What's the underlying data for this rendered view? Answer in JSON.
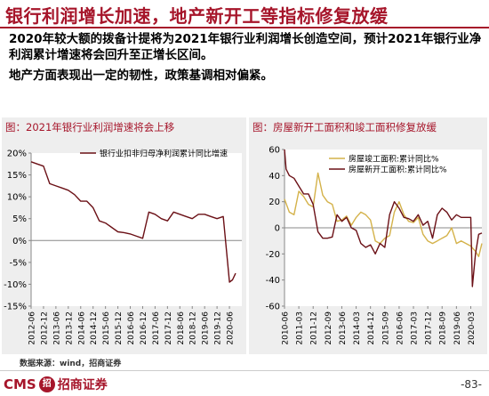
{
  "page": {
    "title": "银行利润增长加速，地产新开工等指标修复放缓",
    "bullets": [
      "2020年较大额的拨备计提将为2021年银行业利润增长创造空间，预计2021年银行业净利润累计增速将会回升至正增长区间。",
      "地产方面表现出一定的韧性，政策基调相对偏紧。"
    ],
    "source": "数据来源：wind，招商证券",
    "logo_latin": "CMS",
    "logo_badge": "招",
    "logo_cn": "招商证券",
    "page_number": "-83-"
  },
  "colors": {
    "brand": "#a6152a",
    "series_bank": "#6b1016",
    "series_completion": "#d4b24a",
    "series_new_start": "#6b1016"
  },
  "chart_data": [
    {
      "type": "line",
      "title": "图：2021年银行业利润增速将会上移",
      "xlabel": "",
      "ylabel": "",
      "ylim": [
        -15,
        20
      ],
      "yticks": [
        20,
        15,
        10,
        5,
        0,
        -5,
        -10,
        -15
      ],
      "ytick_labels": [
        "20%",
        "15%",
        "10%",
        "5%",
        "0%",
        "-5%",
        "-10%",
        "-15%"
      ],
      "xlim": [
        2012.417,
        2020.917
      ],
      "xticks": [
        2012.417,
        2012.917,
        2013.417,
        2013.917,
        2014.417,
        2014.917,
        2015.417,
        2015.917,
        2016.417,
        2016.917,
        2017.417,
        2017.917,
        2018.417,
        2018.917,
        2019.417,
        2019.917,
        2020.417
      ],
      "xtick_labels": [
        "2012-06",
        "2012-12",
        "2013-06",
        "2013-12",
        "2014-06",
        "2014-12",
        "2015-06",
        "2015-12",
        "2016-06",
        "2016-12",
        "2017-06",
        "2017-12",
        "2018-06",
        "2018-12",
        "2019-06",
        "2019-12",
        "2020-06"
      ],
      "legend_position": "top",
      "series": [
        {
          "name": "银行业扣非归母净利润累计同比增速",
          "x": [
            2012.417,
            2012.667,
            2012.917,
            2013.167,
            2013.417,
            2013.667,
            2013.917,
            2014.167,
            2014.417,
            2014.667,
            2014.917,
            2015.167,
            2015.417,
            2015.667,
            2015.917,
            2016.167,
            2016.417,
            2016.667,
            2016.917,
            2017.167,
            2017.417,
            2017.667,
            2017.917,
            2018.167,
            2018.417,
            2018.667,
            2018.917,
            2019.167,
            2019.417,
            2019.667,
            2019.917,
            2020.167,
            2020.417,
            2020.542,
            2020.667
          ],
          "values": [
            18,
            17.5,
            17,
            13,
            12.5,
            12,
            11.5,
            10.5,
            9,
            9,
            7.5,
            4.5,
            4,
            3,
            2,
            1.8,
            1.5,
            1,
            0.5,
            6.5,
            6,
            5,
            4.5,
            6.5,
            6,
            5.5,
            5,
            6,
            6,
            5.5,
            5,
            5.5,
            -9.5,
            -9,
            -7.5
          ]
        }
      ]
    },
    {
      "type": "line",
      "title": "图：房屋新开工面积和竣工面积修复放缓",
      "xlabel": "",
      "ylabel": "",
      "ylim": [
        -60,
        60
      ],
      "yticks": [
        60,
        40,
        20,
        0,
        -20,
        -40,
        -60
      ],
      "ytick_labels": [
        "60",
        "40",
        "20",
        "0",
        "-20",
        "-40",
        "-60"
      ],
      "xlim": [
        2010.417,
        2020.75
      ],
      "xticks": [
        2010.417,
        2011.167,
        2011.917,
        2012.667,
        2013.417,
        2014.167,
        2014.917,
        2015.667,
        2016.417,
        2017.167,
        2017.917,
        2018.667,
        2019.417,
        2020.167
      ],
      "xtick_labels": [
        "2010-06",
        "2011-03",
        "2011-12",
        "2012-09",
        "2013-06",
        "2014-03",
        "2014-12",
        "2015-09",
        "2016-06",
        "2017-03",
        "2017-12",
        "2018-09",
        "2019-06",
        "2020-03"
      ],
      "legend_position": "top-right",
      "series": [
        {
          "name": "房屋竣工面积:累计同比%",
          "x": [
            2010.417,
            2010.667,
            2010.917,
            2011.167,
            2011.417,
            2011.667,
            2011.917,
            2012.167,
            2012.417,
            2012.667,
            2012.917,
            2013.167,
            2013.417,
            2013.667,
            2013.917,
            2014.167,
            2014.417,
            2014.667,
            2014.917,
            2015.167,
            2015.417,
            2015.667,
            2015.917,
            2016.167,
            2016.417,
            2016.667,
            2016.917,
            2017.167,
            2017.417,
            2017.667,
            2017.917,
            2018.167,
            2018.417,
            2018.667,
            2018.917,
            2019.167,
            2019.417,
            2019.667,
            2019.917,
            2020.167,
            2020.417,
            2020.583,
            2020.75
          ],
          "values": [
            22,
            12,
            10,
            28,
            24,
            18,
            16,
            42,
            25,
            20,
            18,
            5,
            6,
            9,
            2,
            8,
            12,
            10,
            6,
            -10,
            -12,
            -8,
            -6,
            12,
            20,
            10,
            5,
            4,
            8,
            -5,
            -10,
            -12,
            -10,
            -8,
            -6,
            0,
            -12,
            -10,
            -12,
            -14,
            -18,
            -22,
            -12
          ]
        },
        {
          "name": "房屋新开工面积:累计同比%",
          "x": [
            2010.417,
            2010.5,
            2010.667,
            2010.917,
            2011.167,
            2011.417,
            2011.667,
            2011.917,
            2012.167,
            2012.417,
            2012.667,
            2012.917,
            2013.167,
            2013.417,
            2013.667,
            2013.917,
            2014.167,
            2014.417,
            2014.667,
            2014.917,
            2015.167,
            2015.417,
            2015.667,
            2015.917,
            2016.167,
            2016.417,
            2016.667,
            2016.917,
            2017.167,
            2017.417,
            2017.667,
            2017.917,
            2018.167,
            2018.417,
            2018.667,
            2018.917,
            2019.167,
            2019.417,
            2019.667,
            2019.917,
            2020.167,
            2020.25,
            2020.417,
            2020.583,
            2020.75
          ],
          "values": [
            60,
            45,
            40,
            38,
            32,
            26,
            26,
            18,
            -3,
            -8,
            -8,
            -7,
            10,
            5,
            8,
            0,
            -2,
            -12,
            -15,
            -13,
            -20,
            -12,
            -15,
            10,
            20,
            15,
            8,
            7,
            5,
            10,
            2,
            5,
            -8,
            10,
            15,
            12,
            6,
            10,
            8,
            8,
            8,
            -45,
            -20,
            -5,
            -4
          ]
        }
      ]
    }
  ]
}
